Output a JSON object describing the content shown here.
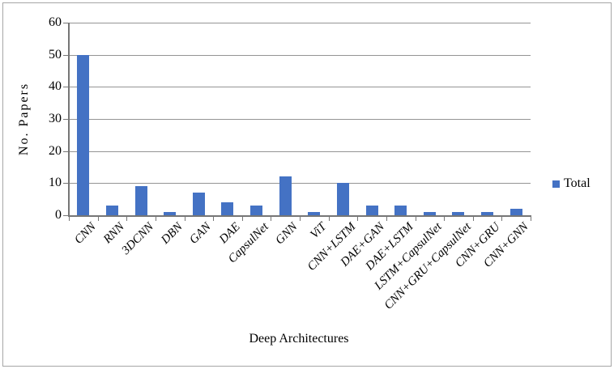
{
  "chart_data": {
    "type": "bar",
    "title": "",
    "categories": [
      "CNN",
      "RNN",
      "3DCNN",
      "DBN",
      "GAN",
      "DAE",
      "CapsulNet",
      "GNN",
      "ViT",
      "CNN+LSTM",
      "DAE+GAN",
      "DAE+LSTM",
      "LSTM+CapsulNet",
      "CNN+GRU+CapsulNet",
      "CNN+GRU",
      "CNN+GNN"
    ],
    "series": [
      {
        "name": "Total",
        "values": [
          50,
          3,
          9,
          1,
          7,
          4,
          3,
          12,
          1,
          10,
          3,
          3,
          1,
          1,
          1,
          2
        ]
      }
    ],
    "xlabel": "Deep Architectures",
    "ylabel": "No. Papers",
    "ylim": [
      0,
      60
    ],
    "yticks": [
      0,
      10,
      20,
      30,
      40,
      50,
      60
    ],
    "grid": true,
    "legend_position": "right",
    "bar_color": "#4472C4",
    "gridline_color": "#949494",
    "axis_color": "#767676",
    "frame_border_color": "#a6a6a6"
  }
}
